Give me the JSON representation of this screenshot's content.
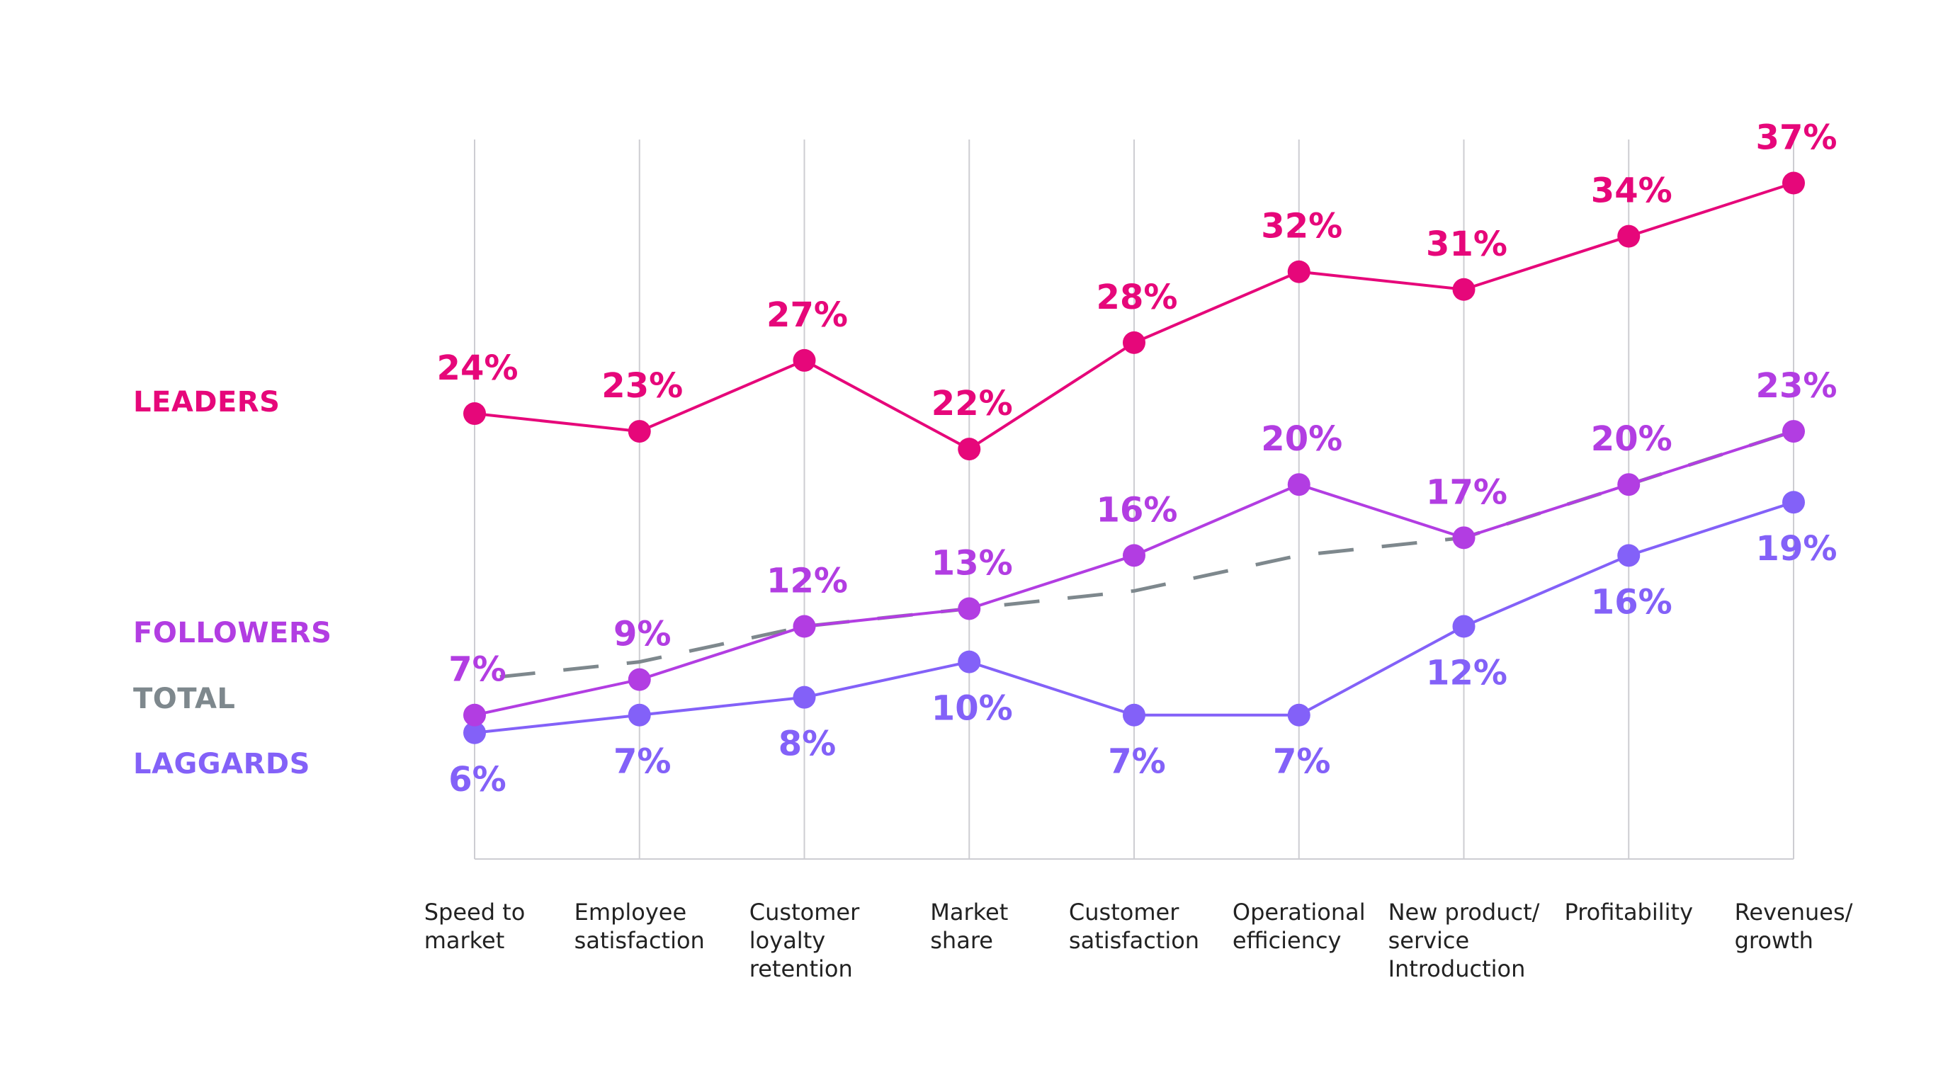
{
  "chart_data": {
    "type": "line",
    "title": "",
    "xlabel": "",
    "ylabel": "",
    "ylim": [
      0,
      40
    ],
    "grid": "vertical",
    "legend_placement": "left",
    "categories": [
      "Speed to\nmarket",
      "Employee\nsatisfaction",
      "Customer\nloyalty\nretention",
      "Market\nshare",
      "Customer\nsatisfaction",
      "Operational\nefficiency",
      "New product/\nservice\nIntroduction",
      "Profitability",
      "Revenues/\ngrowth"
    ],
    "series": [
      {
        "name": "LEADERS",
        "color": "#E6077A",
        "style": "solid",
        "labels": "above",
        "values": [
          24,
          23,
          27,
          22,
          28,
          32,
          31,
          34,
          37
        ]
      },
      {
        "name": "FOLLOWERS",
        "color": "#B23DE2",
        "style": "solid",
        "labels": "above",
        "values": [
          7,
          9,
          12,
          13,
          16,
          20,
          17,
          20,
          23
        ]
      },
      {
        "name": "TOTAL",
        "color": "#7E888D",
        "style": "dashed",
        "labels": "none",
        "values": [
          9,
          10,
          12,
          13,
          14,
          16,
          17,
          20,
          23
        ]
      },
      {
        "name": "LAGGARDS",
        "color": "#8361F8",
        "style": "solid",
        "labels": "below",
        "values": [
          6,
          7,
          8,
          10,
          7,
          7,
          12,
          16,
          19
        ]
      }
    ]
  }
}
